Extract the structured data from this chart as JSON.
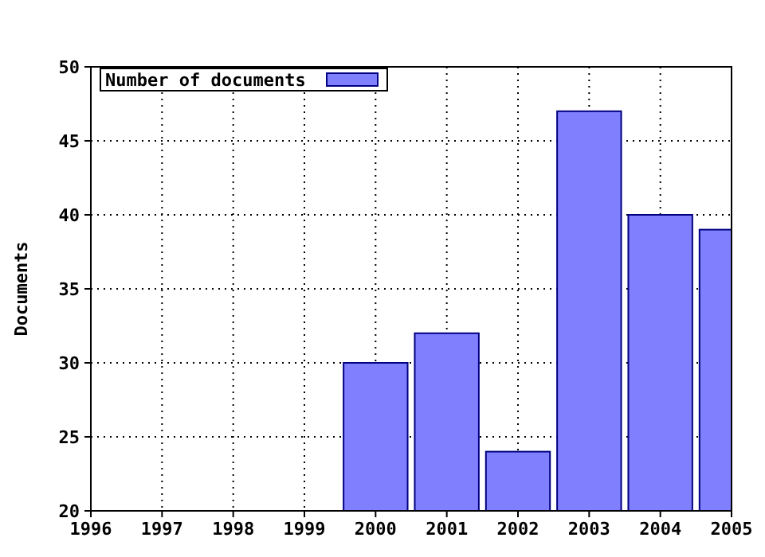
{
  "chart_data": {
    "type": "bar",
    "ylabel": "Documents",
    "x": [
      2000,
      2001,
      2002,
      2003,
      2004,
      2005
    ],
    "series": [
      {
        "name": "Number of documents",
        "color": "#8080ff",
        "values": [
          30,
          32,
          24,
          47,
          40,
          39
        ]
      }
    ],
    "xlim": [
      1996,
      2005
    ],
    "xticks": [
      1996,
      1997,
      1998,
      1999,
      2000,
      2001,
      2002,
      2003,
      2004,
      2005
    ],
    "ylim": [
      20,
      50
    ],
    "yticks": [
      20,
      25,
      30,
      35,
      40,
      45,
      50
    ],
    "grid": true,
    "legend": "top left"
  }
}
